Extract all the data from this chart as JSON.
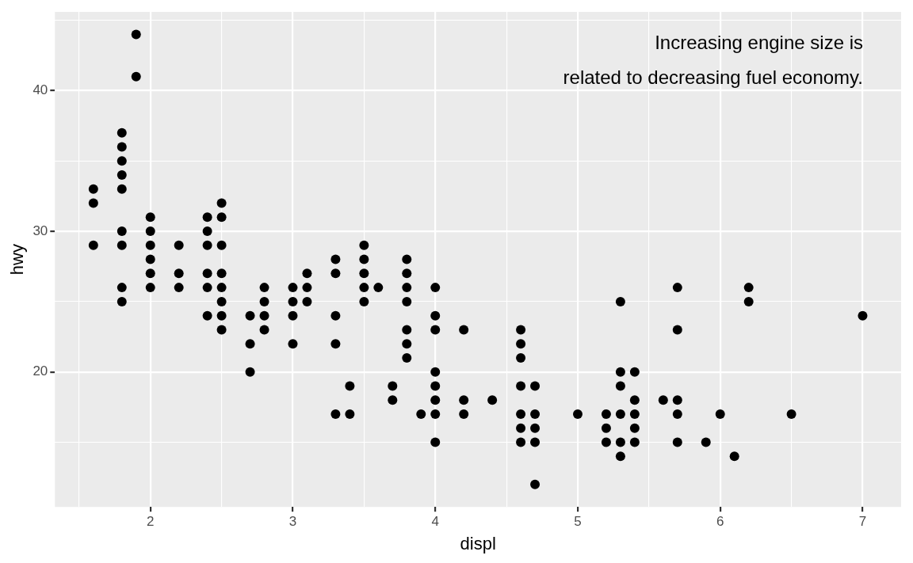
{
  "chart_data": {
    "type": "scatter",
    "xlabel": "displ",
    "ylabel": "hwy",
    "annotations": [
      "Increasing engine size is\nrelated to decreasing fuel economy."
    ],
    "xlim": [
      1.33,
      7.27
    ],
    "ylim": [
      10.4,
      45.6
    ],
    "xticks": [
      {
        "value": 1.5,
        "label": null
      },
      2,
      {
        "value": 2.5,
        "label": null
      },
      3,
      {
        "value": 3.5,
        "label": null
      },
      4,
      {
        "value": 4.5,
        "label": null
      },
      5,
      {
        "value": 5.5,
        "label": null
      },
      6,
      {
        "value": 6.5,
        "label": null
      },
      7
    ],
    "yticks": [
      {
        "value": 15,
        "label": null
      },
      20,
      {
        "value": 25,
        "label": null
      },
      30,
      {
        "value": 35,
        "label": null
      },
      40,
      {
        "value": 45,
        "label": null
      }
    ],
    "grid": true,
    "legend": false,
    "marker": "circle",
    "series": [
      {
        "color": "#000000",
        "x": [
          1.6,
          1.6,
          1.6,
          1.8,
          1.8,
          1.8,
          1.8,
          1.8,
          1.8,
          1.8,
          1.8,
          1.8,
          1.9,
          1.9,
          2.0,
          2.0,
          2.0,
          2.0,
          2.0,
          2.0,
          2.2,
          2.2,
          2.2,
          2.4,
          2.4,
          2.4,
          2.4,
          2.4,
          2.4,
          2.5,
          2.5,
          2.5,
          2.5,
          2.5,
          2.5,
          2.5,
          2.5,
          2.7,
          2.7,
          2.7,
          2.8,
          2.8,
          2.8,
          2.8,
          3.0,
          3.0,
          3.0,
          3.0,
          3.1,
          3.1,
          3.1,
          3.3,
          3.3,
          3.3,
          3.3,
          3.3,
          3.4,
          3.4,
          3.5,
          3.5,
          3.5,
          3.5,
          3.5,
          3.6,
          3.7,
          3.7,
          3.8,
          3.8,
          3.8,
          3.8,
          3.8,
          3.8,
          3.8,
          3.9,
          4.0,
          4.0,
          4.0,
          4.0,
          4.0,
          4.0,
          4.0,
          4.0,
          4.2,
          4.2,
          4.2,
          4.4,
          4.6,
          4.6,
          4.6,
          4.6,
          4.6,
          4.6,
          4.6,
          4.7,
          4.7,
          4.7,
          4.7,
          4.7,
          5.0,
          5.2,
          5.2,
          5.2,
          5.3,
          5.3,
          5.3,
          5.3,
          5.3,
          5.3,
          5.4,
          5.4,
          5.4,
          5.4,
          5.4,
          5.6,
          5.7,
          5.7,
          5.7,
          5.7,
          5.7,
          5.9,
          6.0,
          6.1,
          6.2,
          6.2,
          6.5,
          7.0
        ],
        "values": [
          33,
          32,
          29,
          37,
          36,
          35,
          34,
          33,
          30,
          29,
          26,
          25,
          44,
          41,
          31,
          30,
          29,
          28,
          27,
          26,
          29,
          27,
          26,
          31,
          30,
          29,
          27,
          26,
          24,
          32,
          31,
          29,
          27,
          26,
          25,
          24,
          23,
          24,
          22,
          20,
          26,
          25,
          24,
          23,
          26,
          25,
          24,
          22,
          27,
          26,
          25,
          28,
          27,
          24,
          22,
          17,
          19,
          17,
          29,
          28,
          27,
          26,
          25,
          26,
          19,
          18,
          28,
          27,
          26,
          25,
          23,
          22,
          21,
          17,
          26,
          24,
          23,
          20,
          19,
          18,
          17,
          15,
          23,
          18,
          17,
          18,
          23,
          22,
          21,
          19,
          17,
          16,
          15,
          19,
          17,
          16,
          15,
          12,
          17,
          17,
          16,
          15,
          25,
          20,
          19,
          17,
          15,
          14,
          20,
          18,
          17,
          16,
          15,
          18,
          26,
          23,
          18,
          17,
          15,
          15,
          17,
          14,
          26,
          25,
          17,
          24
        ]
      }
    ]
  }
}
